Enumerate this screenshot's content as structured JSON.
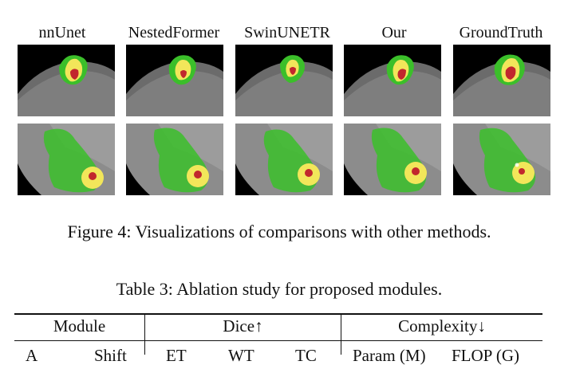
{
  "figure": {
    "column_labels": [
      "nnUnet",
      "NestedFormer",
      "SwinUNETR",
      "Our",
      "GroundTruth"
    ],
    "caption": "Figure 4: Visualizations of comparisons with other methods.",
    "segmentation_colors": {
      "whole_tumor": "#3bbf2a",
      "tumor_core": "#f2e65a",
      "enhancing_tumor": "#c1272d"
    }
  },
  "table": {
    "caption": "Table 3: Ablation study for proposed modules.",
    "headers": {
      "module": "Module",
      "dice": "Dice↑",
      "complexity": "Complexity↓"
    },
    "subheaders": {
      "col1": "A",
      "col2": "Shift",
      "et": "ET",
      "wt": "WT",
      "tc": "TC",
      "params": "Param (M)",
      "flops": "FLOP (G)"
    }
  }
}
